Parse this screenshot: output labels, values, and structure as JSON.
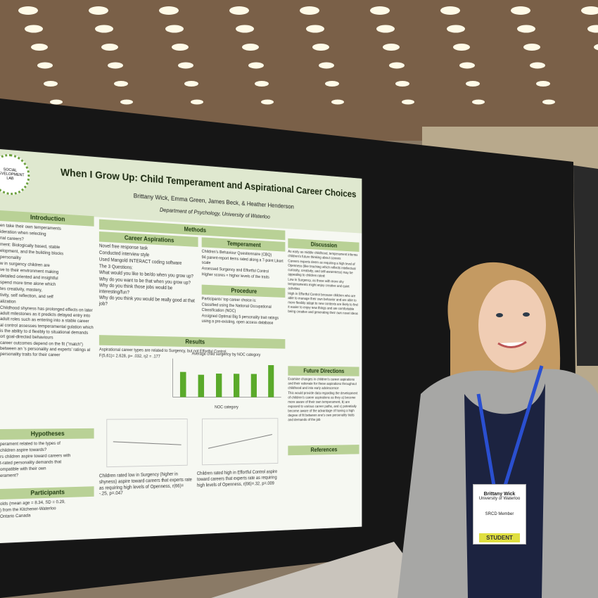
{
  "poster": {
    "lab_logo": "SOCIAL DEVELOPMENT LAB",
    "title": "When I Grow Up: Child Temperament and Aspirational Career Choices",
    "authors": "Brittany Wick, Emma Green, James Beck, & Heather Henderson",
    "department": "Department of Psychology, University of Waterloo",
    "sections": {
      "introduction": {
        "heading": "Introduction",
        "lines": [
          "en take their own temperaments",
          "ideration when selecting",
          "nal careers?",
          "ment: Biologically based, stable",
          "elopment, and the building blocks",
          "personality",
          "w in surgency children are",
          "ve to their environment making",
          "detailed oriented and insightful",
          "spend more time alone which",
          "tes creativity, mastery,",
          "tivity, self reflection, and self",
          "alization",
          "Childhood shyness has prolonged effects on later adult milestones as it predicts delayed entry into adult roles such as entering into a stable career",
          "al control assesses temperamental gulation which is the ability to d flexibly to situational demands ort goal-directed behaviours",
          "career outcomes depend on the fit (\"match\") between an 's personality and experts' ratings al personality traits for their career"
        ]
      },
      "hypotheses": {
        "heading": "Hypotheses",
        "lines": [
          "perament related to the types of",
          "children aspire towards?",
          "rs children aspire toward careers with",
          "t-rated personality demands that",
          "ompatible with their own",
          "erament?"
        ]
      },
      "participants": {
        "heading": "Participants",
        "lines": [
          "olds (mean age = 8.34, SD = 0.29,",
          ") from the Kitchener-Waterloo",
          "Ontario Canada"
        ]
      },
      "methods": {
        "heading": "Methods"
      },
      "career_aspirations": {
        "heading": "Career Aspirations",
        "lines": [
          "Novel free response task",
          "Conducted interview style",
          "Used Mangold INTERACT coding software",
          "The 3 Questions:",
          "What would you like to be/do when you grow up?",
          "Why do you want to be that when you grow up? Why do you think those jobs would be interesting/fun?",
          "Why do you think you would be really good at that job?"
        ]
      },
      "temperament": {
        "heading": "Temperament",
        "lines": [
          "Children's Behaviour Questionnaire (CBQ)",
          "94 parent-report items rated along a 7-point Likert scale",
          "Assessed Surgency and Effortful Control",
          "Higher scores = higher levels of the traits"
        ]
      },
      "procedure": {
        "heading": "Procedure",
        "lines": [
          "Participants' top career choice is:",
          "Classified using the National Occupational Classification (NOC)",
          "Assigned Optimal Big 5 personality trait ratings using a pre-existing, open access database"
        ]
      },
      "results": {
        "heading": "Results",
        "lines": [
          "Aspirational career types are related to Surgency, but not Effortful Control,",
          "F(5,61)= 2.628, p= .032, η2 = .177"
        ],
        "chart_title": "Average child surgency by NOC category",
        "chart_xlabel": "NOC category",
        "caption_left": "Children rated low in Surgency (higher in shyness) aspire toward careers that experts rate as requiring high levels of Openness, r(66)= -.25, p=.047",
        "caption_right": "Children rated high in Effortful Control aspire toward careers that experts rate as requiring high levels of Openness, r(66)=.32, p=.009"
      },
      "discussion": {
        "heading": "Discussion",
        "lines": [
          "As early as middle childhood, temperament informs children's future thinking about careers",
          "Careers experts deem as requiring a high level of Openness (like teaching which reflects intellectual curiosity, creativity, and self-awareness) may be appealing to children rated:",
          "Low in Surgency, as those with more shy temperaments might enjoy creative and quiet activities",
          "High in Effortful Control because children who are able to manage their own behavior and are able to more flexibly adapt to new contexts are likely to find it easier to enjoy new things and are comfortable being creative and generating their own novel ideas"
        ]
      },
      "future_directions": {
        "heading": "Future Directions",
        "lines": [
          "Examine changes in children's career aspirations and their rationale for these aspirations throughout childhood and into early adolescence",
          "This would provide data regarding the development of children's career aspirations as they a) become more aware of their own temperament, b) are exposed to various career paths, and c) potentially become aware of the advantage of having a high degree of fit between one's own personality traits and demands of the job"
        ]
      },
      "references": {
        "heading": "References"
      }
    }
  },
  "badge": {
    "name": "Brittany Wick",
    "affiliation": "University of Waterloo",
    "role": "SRCD Member",
    "ribbon": "STUDENT"
  }
}
